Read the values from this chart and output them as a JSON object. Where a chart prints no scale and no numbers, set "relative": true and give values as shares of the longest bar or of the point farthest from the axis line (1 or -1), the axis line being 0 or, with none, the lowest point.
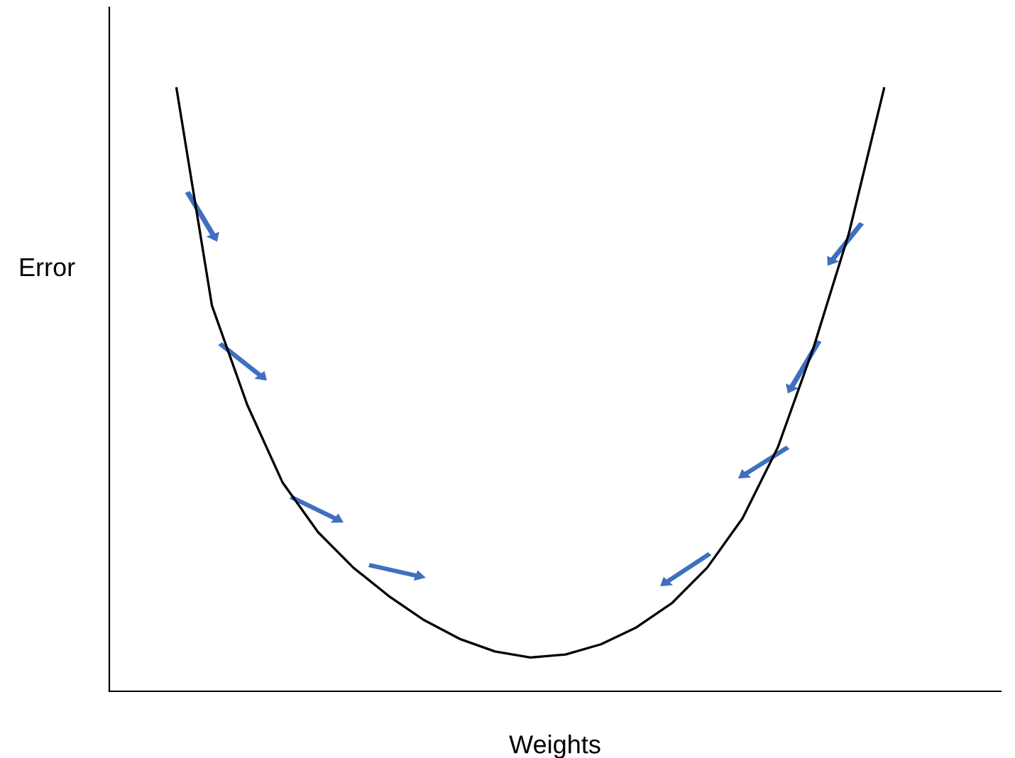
{
  "chart_data": {
    "type": "line",
    "relative": true,
    "xlabel": "Weights",
    "ylabel": "Error",
    "color": "#000000",
    "marker": "none",
    "line_style": "solid",
    "grid": false,
    "legend": false,
    "tick_labels": false,
    "categories": [
      null,
      null,
      null,
      null,
      null,
      null,
      null,
      null,
      null,
      null,
      null,
      null,
      null,
      null,
      null,
      null,
      null,
      null,
      null,
      null,
      null
    ],
    "values": [
      1,
      0.64,
      0.475,
      0.346,
      0.264,
      0.205,
      0.158,
      0.118,
      0.087,
      0.066,
      0.056,
      0.061,
      0.078,
      0.106,
      0.146,
      0.205,
      0.287,
      0.405,
      0.569,
      0.758,
      1
    ]
  }
}
